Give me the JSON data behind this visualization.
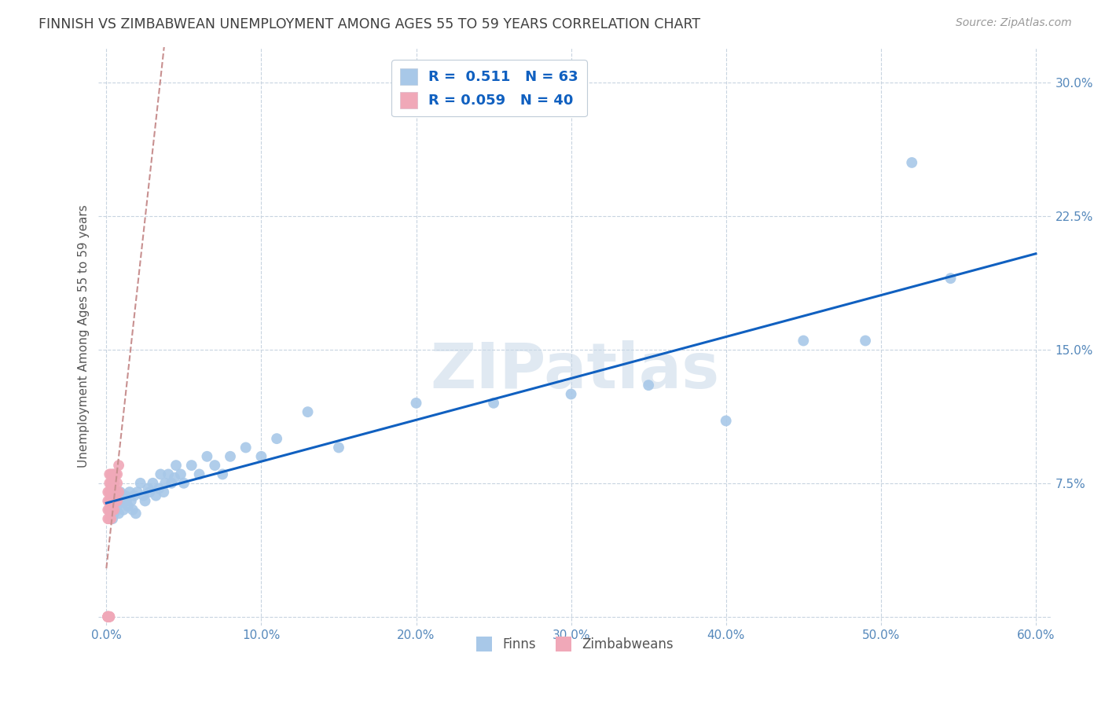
{
  "title": "FINNISH VS ZIMBABWEAN UNEMPLOYMENT AMONG AGES 55 TO 59 YEARS CORRELATION CHART",
  "source": "Source: ZipAtlas.com",
  "ylabel": "Unemployment Among Ages 55 to 59 years",
  "xlim": [
    -0.005,
    0.61
  ],
  "ylim": [
    -0.005,
    0.32
  ],
  "xticks": [
    0.0,
    0.1,
    0.2,
    0.3,
    0.4,
    0.5,
    0.6
  ],
  "yticks": [
    0.0,
    0.075,
    0.15,
    0.225,
    0.3
  ],
  "xtick_labels": [
    "0.0%",
    "10.0%",
    "20.0%",
    "30.0%",
    "40.0%",
    "50.0%",
    "60.0%"
  ],
  "ytick_labels": [
    "",
    "7.5%",
    "15.0%",
    "22.5%",
    "30.0%"
  ],
  "finn_R": 0.511,
  "finn_N": 63,
  "zimb_R": 0.059,
  "zimb_N": 40,
  "finn_color": "#a8c8e8",
  "zimb_color": "#f0a8b8",
  "finn_line_color": "#1060c0",
  "zimb_line_color": "#c89090",
  "background_color": "#ffffff",
  "grid_color": "#c8d4e0",
  "title_color": "#404040",
  "watermark": "ZIPatlas",
  "legend_color": "#1060c0",
  "finn_x": [
    0.002,
    0.003,
    0.003,
    0.004,
    0.004,
    0.004,
    0.005,
    0.005,
    0.006,
    0.006,
    0.007,
    0.007,
    0.008,
    0.008,
    0.009,
    0.01,
    0.011,
    0.012,
    0.013,
    0.014,
    0.015,
    0.016,
    0.017,
    0.018,
    0.019,
    0.02,
    0.022,
    0.024,
    0.025,
    0.027,
    0.028,
    0.03,
    0.032,
    0.034,
    0.035,
    0.037,
    0.038,
    0.04,
    0.042,
    0.044,
    0.045,
    0.048,
    0.05,
    0.055,
    0.06,
    0.065,
    0.07,
    0.075,
    0.08,
    0.09,
    0.1,
    0.11,
    0.13,
    0.15,
    0.2,
    0.25,
    0.3,
    0.35,
    0.4,
    0.45,
    0.49,
    0.52,
    0.545
  ],
  "finn_y": [
    0.06,
    0.058,
    0.062,
    0.055,
    0.06,
    0.065,
    0.058,
    0.062,
    0.06,
    0.065,
    0.062,
    0.068,
    0.058,
    0.065,
    0.07,
    0.065,
    0.06,
    0.068,
    0.065,
    0.062,
    0.07,
    0.065,
    0.06,
    0.068,
    0.058,
    0.07,
    0.075,
    0.068,
    0.065,
    0.072,
    0.07,
    0.075,
    0.068,
    0.072,
    0.08,
    0.07,
    0.075,
    0.08,
    0.075,
    0.078,
    0.085,
    0.08,
    0.075,
    0.085,
    0.08,
    0.09,
    0.085,
    0.08,
    0.09,
    0.095,
    0.09,
    0.1,
    0.115,
    0.095,
    0.12,
    0.12,
    0.125,
    0.13,
    0.11,
    0.155,
    0.155,
    0.255,
    0.19
  ],
  "zimb_x": [
    0.001,
    0.001,
    0.001,
    0.001,
    0.001,
    0.001,
    0.001,
    0.001,
    0.001,
    0.001,
    0.002,
    0.002,
    0.002,
    0.002,
    0.002,
    0.002,
    0.002,
    0.002,
    0.002,
    0.003,
    0.003,
    0.003,
    0.003,
    0.003,
    0.004,
    0.004,
    0.004,
    0.004,
    0.005,
    0.005,
    0.005,
    0.005,
    0.006,
    0.006,
    0.006,
    0.007,
    0.007,
    0.007,
    0.008,
    0.008
  ],
  "zimb_y": [
    0.0,
    0.0,
    0.0,
    0.0,
    0.0,
    0.0,
    0.055,
    0.06,
    0.065,
    0.07,
    0.0,
    0.0,
    0.0,
    0.055,
    0.06,
    0.065,
    0.07,
    0.075,
    0.08,
    0.055,
    0.06,
    0.065,
    0.075,
    0.08,
    0.06,
    0.065,
    0.075,
    0.08,
    0.06,
    0.065,
    0.075,
    0.08,
    0.065,
    0.07,
    0.08,
    0.065,
    0.075,
    0.08,
    0.07,
    0.085
  ]
}
